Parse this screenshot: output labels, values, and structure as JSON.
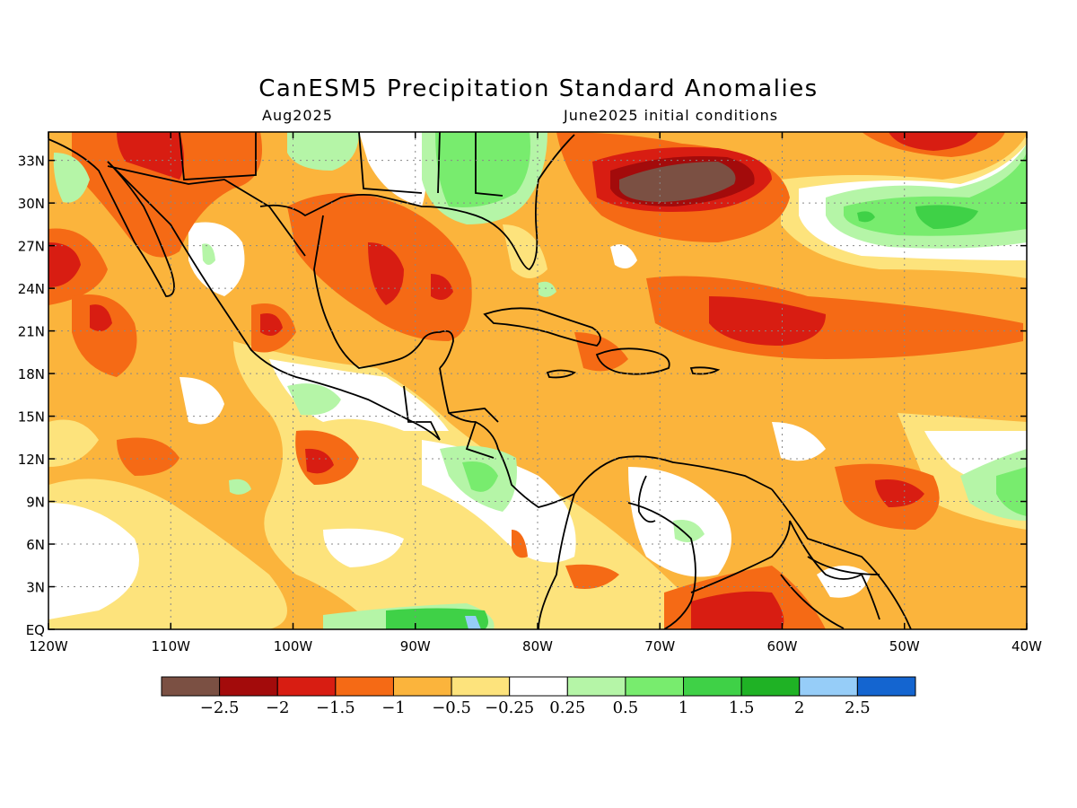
{
  "title": "CanESM5 Precipitation Standard Anomalies",
  "subtitle_left": "Aug2025",
  "subtitle_right": "June2025 initial conditions",
  "map": {
    "lat_labels": [
      "33N",
      "30N",
      "27N",
      "24N",
      "21N",
      "18N",
      "15N",
      "12N",
      "9N",
      "6N",
      "3N",
      "EQ"
    ],
    "lon_labels": [
      "120W",
      "110W",
      "100W",
      "90W",
      "80W",
      "70W",
      "60W",
      "50W",
      "40W"
    ],
    "lat_values": [
      33,
      30,
      27,
      24,
      21,
      18,
      15,
      12,
      9,
      6,
      3,
      0
    ],
    "lon_values": [
      -120,
      -110,
      -100,
      -90,
      -80,
      -70,
      -60,
      -50,
      -40
    ],
    "extent": {
      "lon_min": -120,
      "lon_max": -40,
      "lat_min": 0,
      "lat_max": 35
    },
    "grid": "dotted"
  },
  "colorbar": {
    "colors": [
      "#7b5043",
      "#a30b0b",
      "#d81d12",
      "#f56a15",
      "#fbb43c",
      "#fde37c",
      "#ffffff",
      "#b5f5a7",
      "#78ec6e",
      "#3fd147",
      "#1fb225",
      "#96cdf8",
      "#1465d0"
    ],
    "labels": [
      "−2.5",
      "−2",
      "−1.5",
      "−1",
      "−0.5",
      "−0.25",
      "0.25",
      "0.5",
      "1",
      "1.5",
      "2",
      "2.5"
    ]
  }
}
